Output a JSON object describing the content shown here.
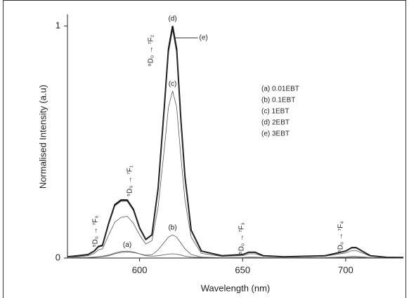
{
  "chart_data": {
    "type": "line",
    "xlabel": "Wavelength (nm)",
    "ylabel": "Normalised Intensity (a.u)",
    "x": [
      565,
      570,
      575,
      578,
      580,
      582,
      585,
      588,
      591,
      594,
      597,
      600,
      603,
      606,
      609,
      612,
      614,
      616,
      618,
      620,
      622,
      625,
      630,
      640,
      650,
      653,
      656,
      660,
      670,
      690,
      700,
      703,
      705,
      708,
      712,
      720,
      728
    ],
    "xlim": [
      565,
      728
    ],
    "xticks": [
      600,
      650,
      700
    ],
    "ylim": [
      0,
      1.05
    ],
    "yticks": [
      0,
      1
    ],
    "series": [
      {
        "name": "(a) 0.01EBT",
        "label": "(a)",
        "color": "#555",
        "values": [
          0,
          0.001,
          0.002,
          0.003,
          0.005,
          0.006,
          0.01,
          0.018,
          0.024,
          0.026,
          0.024,
          0.018,
          0.01,
          0.008,
          0.01,
          0.014,
          0.017,
          0.018,
          0.017,
          0.013,
          0.008,
          0.004,
          0.002,
          0.001,
          0.001,
          0.001,
          0.001,
          0.001,
          0,
          0.001,
          0.002,
          0.003,
          0.003,
          0.002,
          0.001,
          0,
          0
        ]
      },
      {
        "name": "(b) 0.1EBT",
        "label": "(b)",
        "color": "#555",
        "values": [
          0,
          0.001,
          0.002,
          0.004,
          0.006,
          0.008,
          0.013,
          0.022,
          0.028,
          0.03,
          0.026,
          0.018,
          0.012,
          0.014,
          0.035,
          0.068,
          0.09,
          0.1,
          0.09,
          0.065,
          0.04,
          0.015,
          0.004,
          0.001,
          0.002,
          0.004,
          0.004,
          0.002,
          0.001,
          0.002,
          0.005,
          0.007,
          0.007,
          0.005,
          0.002,
          0.001,
          0
        ]
      },
      {
        "name": "(c) 1EBT",
        "label": "(c)",
        "color": "#555",
        "values": [
          0,
          0.005,
          0.01,
          0.02,
          0.035,
          0.04,
          0.1,
          0.155,
          0.175,
          0.18,
          0.15,
          0.1,
          0.06,
          0.075,
          0.22,
          0.47,
          0.65,
          0.72,
          0.65,
          0.44,
          0.25,
          0.09,
          0.02,
          0.007,
          0.01,
          0.018,
          0.018,
          0.008,
          0.004,
          0.008,
          0.022,
          0.032,
          0.032,
          0.022,
          0.008,
          0.002,
          0.001
        ]
      },
      {
        "name": "(d) 2EBT",
        "label": "(d)",
        "color": "#111",
        "values": [
          0.005,
          0.01,
          0.015,
          0.03,
          0.05,
          0.055,
          0.15,
          0.23,
          0.25,
          0.25,
          0.21,
          0.13,
          0.08,
          0.1,
          0.3,
          0.65,
          0.9,
          1.0,
          0.9,
          0.6,
          0.35,
          0.12,
          0.03,
          0.01,
          0.015,
          0.025,
          0.025,
          0.01,
          0.005,
          0.01,
          0.03,
          0.045,
          0.045,
          0.03,
          0.01,
          0.003,
          0.002
        ]
      },
      {
        "name": "(e) 3EBT",
        "label": "(e)",
        "color": "#333",
        "values": [
          0.005,
          0.01,
          0.015,
          0.028,
          0.047,
          0.052,
          0.145,
          0.225,
          0.245,
          0.245,
          0.205,
          0.127,
          0.078,
          0.098,
          0.295,
          0.64,
          0.885,
          0.985,
          0.885,
          0.59,
          0.345,
          0.118,
          0.03,
          0.01,
          0.014,
          0.024,
          0.024,
          0.01,
          0.005,
          0.01,
          0.029,
          0.043,
          0.043,
          0.029,
          0.01,
          0.003,
          0.002
        ]
      }
    ],
    "annotations": [
      "⁵D₀ → ⁷F₀",
      "⁵D₀ → ⁷F₁",
      "⁵D₀ → ⁷F₂",
      "⁵D₀ → ⁷F₃",
      "⁵D₀ → ⁷F₄"
    ]
  }
}
